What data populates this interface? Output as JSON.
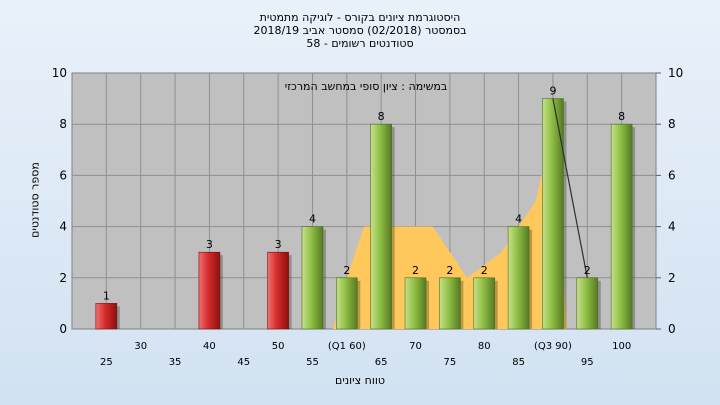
{
  "title_lines": [
    "היסטוגרמת ציונים בקורס - לוגיקה מתמטית",
    "בסמסטר  (02/2018)  סמסטר אביב 2018/19",
    "סטודנטים רשומים - 58"
  ],
  "chart_data": {
    "type": "bar",
    "title": "היסטוגרמת ציונים בקורס - לוגיקה מתמטית",
    "annotation": "במשימה : ציון סופי במחשב המרכזי",
    "xlabel": "טווח ציונים",
    "ylabel": "מספר סטודנטים",
    "ylim": [
      0,
      10
    ],
    "yticks": [
      0,
      2,
      4,
      6,
      8,
      10
    ],
    "grid": true,
    "x_ticks": [
      {
        "x": 25,
        "label": "25",
        "row": 1
      },
      {
        "x": 30,
        "label": "30",
        "row": 0
      },
      {
        "x": 35,
        "label": "35",
        "row": 1
      },
      {
        "x": 40,
        "label": "40",
        "row": 0
      },
      {
        "x": 45,
        "label": "45",
        "row": 1
      },
      {
        "x": 50,
        "label": "50",
        "row": 0
      },
      {
        "x": 55,
        "label": "55",
        "row": 1
      },
      {
        "x": 60,
        "label": "(Q1 60)",
        "row": 0
      },
      {
        "x": 65,
        "label": "65",
        "row": 1
      },
      {
        "x": 70,
        "label": "70",
        "row": 0
      },
      {
        "x": 75,
        "label": "75",
        "row": 1
      },
      {
        "x": 80,
        "label": "80",
        "row": 0
      },
      {
        "x": 85,
        "label": "85",
        "row": 1
      },
      {
        "x": 90,
        "label": "(Q3 90)",
        "row": 0
      },
      {
        "x": 95,
        "label": "95",
        "row": 1
      },
      {
        "x": 100,
        "label": "100",
        "row": 0
      }
    ],
    "bars": [
      {
        "x": 25,
        "value": 1,
        "color": "red"
      },
      {
        "x": 40,
        "value": 3,
        "color": "red"
      },
      {
        "x": 50,
        "value": 3,
        "color": "red"
      },
      {
        "x": 55,
        "value": 4,
        "color": "green"
      },
      {
        "x": 60,
        "value": 2,
        "color": "green"
      },
      {
        "x": 65,
        "value": 8,
        "color": "green"
      },
      {
        "x": 70,
        "value": 2,
        "color": "green"
      },
      {
        "x": 75,
        "value": 2,
        "color": "green"
      },
      {
        "x": 80,
        "value": 2,
        "color": "green"
      },
      {
        "x": 85,
        "value": 4,
        "color": "green"
      },
      {
        "x": 90,
        "value": 9,
        "color": "green"
      },
      {
        "x": 95,
        "value": 2,
        "color": "green"
      },
      {
        "x": 100,
        "value": 8,
        "color": "green"
      }
    ],
    "iqr_area": [
      {
        "x": 58,
        "y": 0
      },
      {
        "x": 60,
        "y": 2
      },
      {
        "x": 62.5,
        "y": 4
      },
      {
        "x": 67.5,
        "y": 4
      },
      {
        "x": 72.5,
        "y": 4
      },
      {
        "x": 77.5,
        "y": 2
      },
      {
        "x": 82.5,
        "y": 3
      },
      {
        "x": 87.5,
        "y": 5
      },
      {
        "x": 90,
        "y": 8
      },
      {
        "x": 92,
        "y": 0
      }
    ],
    "connector_line": [
      {
        "x": 90,
        "y": 9
      },
      {
        "x": 95,
        "y": 2
      }
    ],
    "colors": {
      "plot_bg": "#c0c0c0",
      "grid": "#8f8f8f",
      "iqr_area": "#ffc85c",
      "red_bar": "#d42b2b",
      "green_bar": "#8fbf45"
    }
  }
}
